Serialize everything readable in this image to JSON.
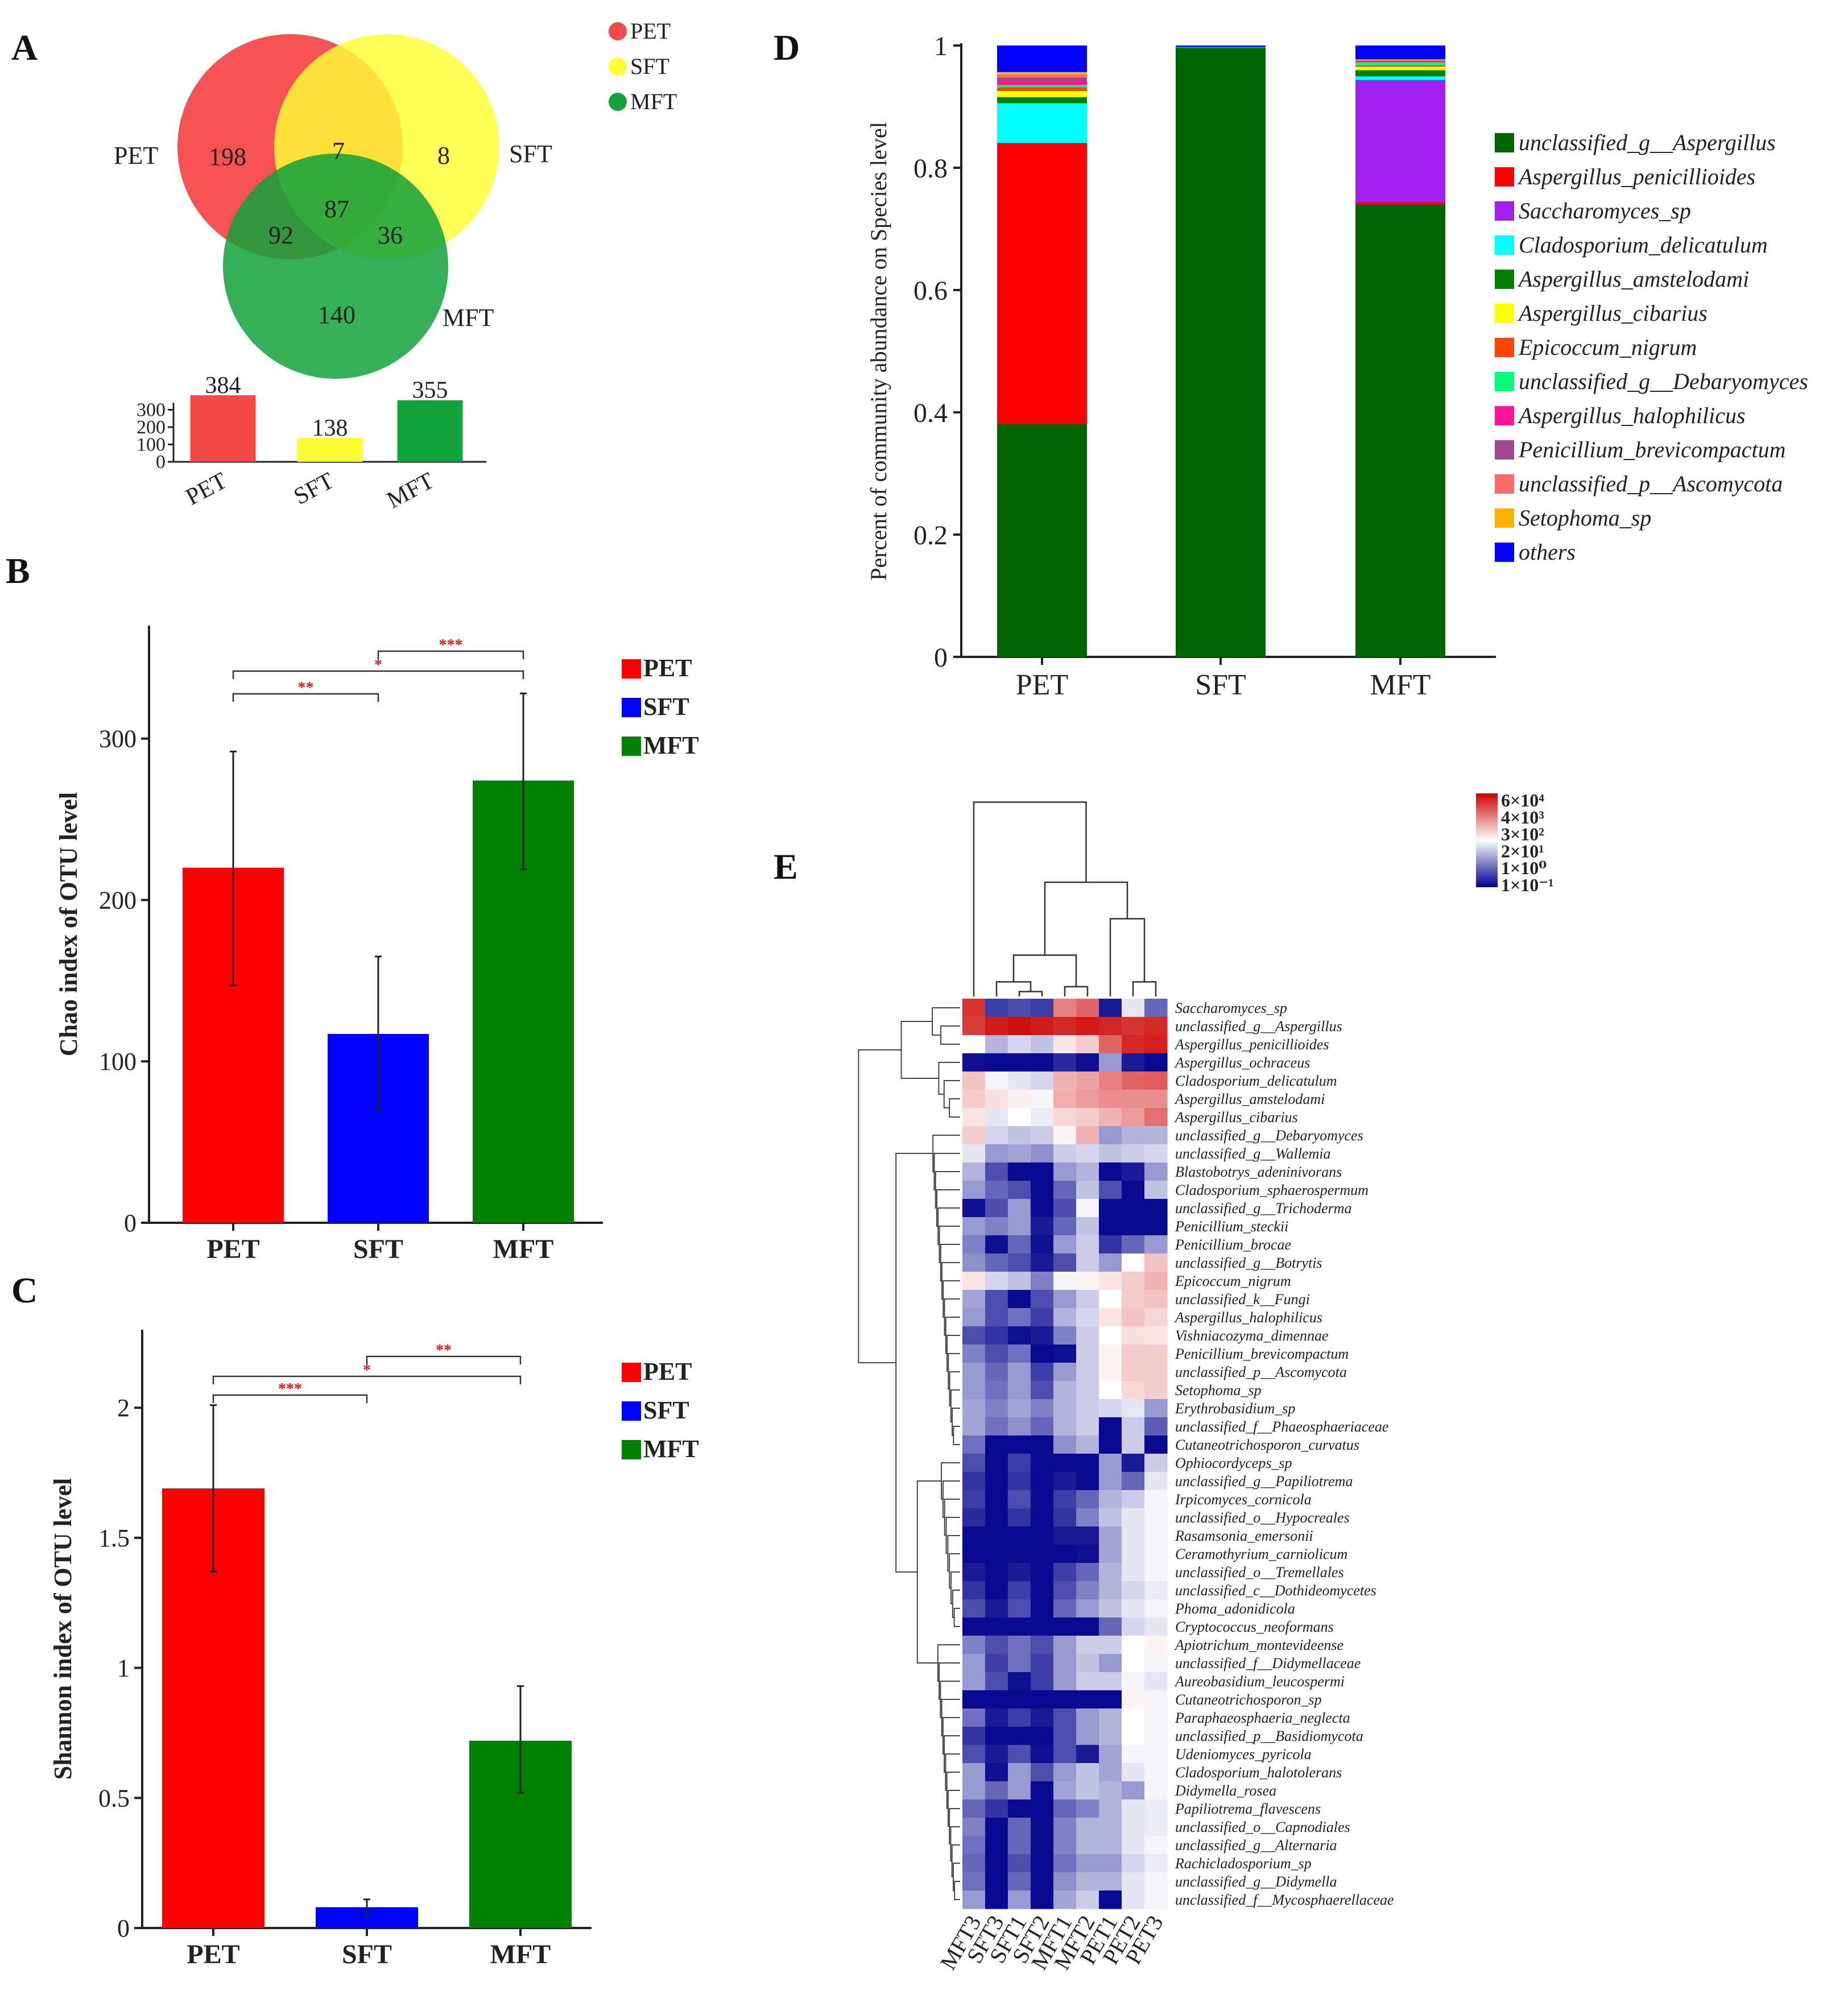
{
  "panels": {
    "A": {
      "letter": "A",
      "legend": [
        {
          "name": "PET",
          "color": "#f44a4a"
        },
        {
          "name": "SFT",
          "color": "#ffff33"
        },
        {
          "name": "MFT",
          "color": "#14a23c"
        }
      ],
      "circle_labels": [
        "PET",
        "SFT",
        "MFT"
      ],
      "regions": {
        "pet_only": 198,
        "sft_only": 8,
        "mft_only": 140,
        "pet_sft": 7,
        "pet_mft": 92,
        "sft_mft": 36,
        "all": 87
      },
      "totals": {
        "categories": [
          "PET",
          "SFT",
          "MFT"
        ],
        "values": [
          384,
          138,
          355
        ],
        "colors": [
          "#f44a4a",
          "#ffff33",
          "#14a23c"
        ],
        "ticks": [
          0,
          100,
          200,
          300
        ]
      }
    },
    "B": {
      "letter": "B",
      "chart_data": {
        "type": "bar",
        "categories": [
          "PET",
          "SFT",
          "MFT"
        ],
        "values": [
          220,
          117,
          274
        ],
        "errors": [
          [
            147,
            292
          ],
          [
            70,
            165
          ],
          [
            219,
            328
          ]
        ],
        "colors": [
          "#ff0000",
          "#0000ff",
          "#008000"
        ],
        "ylabel": "Chao index of OTU level",
        "ylim": [
          0,
          370
        ],
        "ticks": [
          0,
          100,
          200,
          300
        ],
        "legend": [
          "PET",
          "SFT",
          "MFT"
        ],
        "significance": [
          {
            "from": 0,
            "to": 1,
            "label": "**"
          },
          {
            "from": 0,
            "to": 2,
            "label": "*"
          },
          {
            "from": 1,
            "to": 2,
            "label": "***"
          }
        ]
      }
    },
    "C": {
      "letter": "C",
      "chart_data": {
        "type": "bar",
        "categories": [
          "PET",
          "SFT",
          "MFT"
        ],
        "values": [
          1.69,
          0.08,
          0.72
        ],
        "errors": [
          [
            1.37,
            2.01
          ],
          [
            0.05,
            0.11
          ],
          [
            0.52,
            0.93
          ]
        ],
        "colors": [
          "#ff0000",
          "#0000ff",
          "#008000"
        ],
        "ylabel": "Shannon index of OTU level",
        "ylim": [
          0,
          2.3
        ],
        "ticks": [
          0,
          0.5,
          1,
          1.5,
          2
        ],
        "tick_labels": [
          "0",
          "0.5",
          "1",
          "1.5",
          "2"
        ],
        "legend": [
          "PET",
          "SFT",
          "MFT"
        ],
        "significance": [
          {
            "from": 0,
            "to": 1,
            "label": "***"
          },
          {
            "from": 0,
            "to": 2,
            "label": "*"
          },
          {
            "from": 1,
            "to": 2,
            "label": "**"
          }
        ]
      }
    },
    "D": {
      "letter": "D",
      "chart_data": {
        "type": "bar",
        "stacked": true,
        "categories": [
          "PET",
          "SFT",
          "MFT"
        ],
        "ylabel": "Percent of community abundance on Species level",
        "ylim": [
          0,
          1
        ],
        "ticks": [
          0,
          0.2,
          0.4,
          0.6,
          0.8,
          1
        ],
        "tick_labels": [
          "0",
          "0.2",
          "0.4",
          "0.6",
          "0.8",
          "1"
        ],
        "series": [
          {
            "name": "unclassified_g__Aspergillus",
            "color": "#006400",
            "values": [
              0.381,
              0.995,
              0.74
            ]
          },
          {
            "name": "Aspergillus_penicillioides",
            "color": "#ff0000",
            "values": [
              0.46,
              0.0,
              0.004
            ]
          },
          {
            "name": "Saccharomyces_sp",
            "color": "#a020f0",
            "values": [
              0.0,
              0.0,
              0.2
            ]
          },
          {
            "name": "Cladosporium_delicatulum",
            "color": "#00ffff",
            "values": [
              0.065,
              0.0,
              0.006
            ]
          },
          {
            "name": "Aspergillus_amstelodami",
            "color": "#008000",
            "values": [
              0.01,
              0.002,
              0.01
            ]
          },
          {
            "name": "Aspergillus_cibarius",
            "color": "#ffff00",
            "values": [
              0.01,
              0.0,
              0.006
            ]
          },
          {
            "name": "Epicoccum_nigrum",
            "color": "#ff4500",
            "values": [
              0.006,
              0.0,
              0.002
            ]
          },
          {
            "name": "unclassified_g__Debaryomyces",
            "color": "#00ff7f",
            "values": [
              0.004,
              0.001,
              0.005
            ]
          },
          {
            "name": "Aspergillus_halophilicus",
            "color": "#ff1493",
            "values": [
              0.006,
              0.0,
              0.001
            ]
          },
          {
            "name": "Penicillium_brevicompactum",
            "color": "#a0468c",
            "values": [
              0.006,
              0.0,
              0.001
            ]
          },
          {
            "name": "unclassified_p__Ascomycota",
            "color": "#ff6a6a",
            "values": [
              0.005,
              0.0,
              0.002
            ]
          },
          {
            "name": "Setophoma_sp",
            "color": "#ffb300",
            "values": [
              0.004,
              0.0,
              0.001
            ]
          },
          {
            "name": "others",
            "color": "#0000ff",
            "values": [
              0.043,
              0.002,
              0.022
            ]
          }
        ]
      }
    },
    "E": {
      "letter": "E",
      "chart_data": {
        "type": "heatmap",
        "columns": [
          "MFT3",
          "SFT3",
          "SFT1",
          "SFT2",
          "MFT1",
          "MFT2",
          "PET1",
          "PET2",
          "PET3"
        ],
        "rows": [
          "Saccharomyces_sp",
          "unclassified_g__Aspergillus",
          "Aspergillus_penicillioides",
          "Aspergillus_ochraceus",
          "Cladosporium_delicatulum",
          "Aspergillus_amstelodami",
          "Aspergillus_cibarius",
          "unclassified_g__Debaryomyces",
          "unclassified_g__Wallemia",
          "Blastobotrys_adeninivorans",
          "Cladosporium_sphaerospermum",
          "unclassified_g__Trichoderma",
          "Penicillium_steckii",
          "Penicillium_brocae",
          "unclassified_g__Botrytis",
          "Epicoccum_nigrum",
          "unclassified_k__Fungi",
          "Aspergillus_halophilicus",
          "Vishniacozyma_dimennae",
          "Penicillium_brevicompactum",
          "unclassified_p__Ascomycota",
          "Setophoma_sp",
          "Erythrobasidium_sp",
          "unclassified_f__Phaeosphaeriaceae",
          "Cutaneotrichosporon_curvatus",
          "Ophiocordyceps_sp",
          "unclassified_g__Papiliotrema",
          "Irpicomyces_cornicola",
          "unclassified_o__Hypocreales",
          "Rasamsonia_emersonii",
          "Ceramothyrium_carniolicum",
          "unclassified_o__Tremellales",
          "unclassified_c__Dothideomycetes",
          "Phoma_adonidicola",
          "Cryptococcus_neoformans",
          "Apiotrichum_montevideense",
          "unclassified_f__Didymellaceae",
          "Aureobasidium_leucospermi",
          "Cutaneotrichosporon_sp",
          "Paraphaeosphaeria_neglecta",
          "unclassified_p__Basidiomycota",
          "Udeniomyces_pyricola",
          "Cladosporium_halotolerans",
          "Didymella_rosea",
          "Papiliotrema_flavescens",
          "unclassified_o__Capnodiales",
          "unclassified_g__Alternaria",
          "Rachicladosporium_sp",
          "unclassified_g__Didymella",
          "unclassified_f__Mycosphaerellaceae"
        ],
        "values": [
          [
            0.9,
            0.12,
            0.15,
            0.12,
            0.75,
            0.8,
            0.05,
            0.45,
            0.2
          ],
          [
            0.88,
            0.95,
            0.97,
            0.95,
            0.92,
            0.95,
            0.93,
            0.9,
            0.92
          ],
          [
            0.5,
            0.35,
            0.42,
            0.38,
            0.55,
            0.6,
            0.8,
            0.92,
            0.94
          ],
          [
            0.03,
            0.02,
            0.02,
            0.02,
            0.08,
            0.03,
            0.3,
            0.05,
            0.02
          ],
          [
            0.62,
            0.48,
            0.45,
            0.42,
            0.65,
            0.68,
            0.75,
            0.8,
            0.82
          ],
          [
            0.6,
            0.56,
            0.53,
            0.48,
            0.66,
            0.7,
            0.72,
            0.72,
            0.72
          ],
          [
            0.55,
            0.45,
            0.5,
            0.46,
            0.58,
            0.6,
            0.65,
            0.7,
            0.78
          ],
          [
            0.6,
            0.42,
            0.38,
            0.4,
            0.52,
            0.65,
            0.3,
            0.35,
            0.35
          ],
          [
            0.45,
            0.3,
            0.32,
            0.28,
            0.4,
            0.42,
            0.38,
            0.4,
            0.42
          ],
          [
            0.35,
            0.15,
            0.02,
            0.02,
            0.3,
            0.35,
            0.02,
            0.05,
            0.3
          ],
          [
            0.3,
            0.2,
            0.15,
            0.02,
            0.2,
            0.38,
            0.15,
            0.02,
            0.38
          ],
          [
            0.03,
            0.15,
            0.3,
            0.02,
            0.15,
            0.48,
            0.02,
            0.02,
            0.02
          ],
          [
            0.3,
            0.25,
            0.3,
            0.05,
            0.2,
            0.38,
            0.02,
            0.02,
            0.02
          ],
          [
            0.25,
            0.03,
            0.2,
            0.03,
            0.3,
            0.4,
            0.1,
            0.2,
            0.3
          ],
          [
            0.28,
            0.2,
            0.15,
            0.05,
            0.15,
            0.4,
            0.3,
            0.5,
            0.62
          ],
          [
            0.55,
            0.42,
            0.38,
            0.25,
            0.48,
            0.52,
            0.55,
            0.6,
            0.65
          ],
          [
            0.32,
            0.15,
            0.02,
            0.15,
            0.3,
            0.4,
            0.5,
            0.6,
            0.62
          ],
          [
            0.3,
            0.15,
            0.22,
            0.12,
            0.35,
            0.42,
            0.55,
            0.62,
            0.58
          ],
          [
            0.15,
            0.1,
            0.03,
            0.05,
            0.25,
            0.4,
            0.5,
            0.56,
            0.55
          ],
          [
            0.25,
            0.15,
            0.22,
            0.02,
            0.03,
            0.4,
            0.52,
            0.6,
            0.6
          ],
          [
            0.3,
            0.2,
            0.3,
            0.12,
            0.3,
            0.4,
            0.52,
            0.6,
            0.6
          ],
          [
            0.3,
            0.22,
            0.3,
            0.15,
            0.35,
            0.4,
            0.5,
            0.58,
            0.6
          ],
          [
            0.32,
            0.25,
            0.32,
            0.25,
            0.35,
            0.4,
            0.42,
            0.45,
            0.3
          ],
          [
            0.32,
            0.22,
            0.28,
            0.2,
            0.35,
            0.4,
            0.02,
            0.4,
            0.18
          ],
          [
            0.22,
            0.02,
            0.02,
            0.02,
            0.28,
            0.35,
            0.02,
            0.4,
            0.02
          ],
          [
            0.15,
            0.02,
            0.12,
            0.02,
            0.02,
            0.02,
            0.3,
            0.05,
            0.4
          ],
          [
            0.1,
            0.02,
            0.1,
            0.02,
            0.05,
            0.02,
            0.3,
            0.2,
            0.45
          ],
          [
            0.12,
            0.02,
            0.15,
            0.02,
            0.12,
            0.2,
            0.35,
            0.4,
            0.48
          ],
          [
            0.08,
            0.02,
            0.1,
            0.02,
            0.1,
            0.25,
            0.38,
            0.45,
            0.48
          ],
          [
            0.02,
            0.02,
            0.02,
            0.02,
            0.05,
            0.05,
            0.32,
            0.45,
            0.48
          ],
          [
            0.02,
            0.02,
            0.02,
            0.02,
            0.02,
            0.03,
            0.32,
            0.45,
            0.48
          ],
          [
            0.05,
            0.02,
            0.05,
            0.02,
            0.12,
            0.2,
            0.35,
            0.45,
            0.48
          ],
          [
            0.1,
            0.02,
            0.12,
            0.02,
            0.15,
            0.25,
            0.35,
            0.42,
            0.46
          ],
          [
            0.15,
            0.05,
            0.15,
            0.02,
            0.2,
            0.3,
            0.38,
            0.45,
            0.48
          ],
          [
            0.02,
            0.02,
            0.02,
            0.02,
            0.02,
            0.02,
            0.2,
            0.42,
            0.45
          ],
          [
            0.25,
            0.15,
            0.22,
            0.15,
            0.3,
            0.4,
            0.4,
            0.5,
            0.52
          ],
          [
            0.3,
            0.12,
            0.22,
            0.12,
            0.3,
            0.38,
            0.3,
            0.5,
            0.48
          ],
          [
            0.3,
            0.15,
            0.03,
            0.12,
            0.3,
            0.4,
            0.4,
            0.48,
            0.45
          ],
          [
            0.02,
            0.02,
            0.02,
            0.02,
            0.02,
            0.02,
            0.02,
            0.52,
            0.48
          ],
          [
            0.22,
            0.05,
            0.12,
            0.05,
            0.15,
            0.3,
            0.35,
            0.5,
            0.48
          ],
          [
            0.1,
            0.02,
            0.02,
            0.02,
            0.15,
            0.3,
            0.35,
            0.5,
            0.48
          ],
          [
            0.15,
            0.05,
            0.15,
            0.03,
            0.15,
            0.05,
            0.32,
            0.48,
            0.48
          ],
          [
            0.3,
            0.03,
            0.3,
            0.15,
            0.3,
            0.38,
            0.32,
            0.45,
            0.48
          ],
          [
            0.3,
            0.2,
            0.3,
            0.02,
            0.32,
            0.38,
            0.35,
            0.3,
            0.48
          ],
          [
            0.2,
            0.1,
            0.02,
            0.02,
            0.2,
            0.25,
            0.35,
            0.45,
            0.46
          ],
          [
            0.25,
            0.02,
            0.2,
            0.02,
            0.25,
            0.35,
            0.35,
            0.45,
            0.46
          ],
          [
            0.22,
            0.02,
            0.2,
            0.02,
            0.25,
            0.35,
            0.35,
            0.45,
            0.48
          ],
          [
            0.2,
            0.02,
            0.15,
            0.02,
            0.22,
            0.3,
            0.3,
            0.42,
            0.46
          ],
          [
            0.22,
            0.02,
            0.2,
            0.02,
            0.28,
            0.35,
            0.35,
            0.45,
            0.48
          ],
          [
            0.3,
            0.02,
            0.3,
            0.02,
            0.32,
            0.4,
            0.02,
            0.45,
            0.48
          ]
        ],
        "colorbar_labels": [
          "6×10⁴",
          "4×10³",
          "3×10²",
          "2×10¹",
          "1×10⁰",
          "1×10⁻¹"
        ],
        "colors": {
          "low": "#00008b",
          "mid": "#ffffff",
          "high": "#cc0000"
        }
      }
    }
  }
}
